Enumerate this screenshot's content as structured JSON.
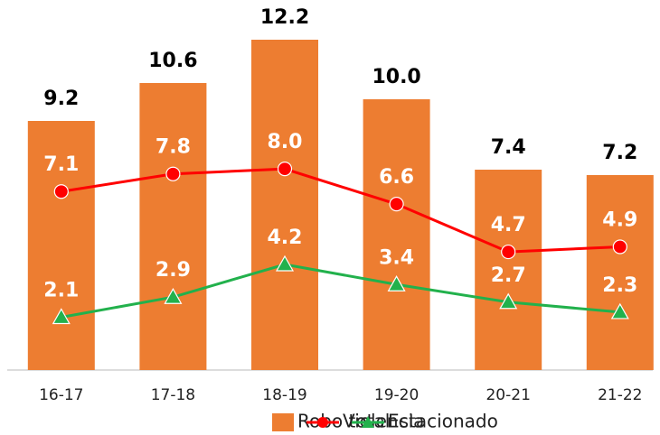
{
  "chart_data": {
    "type": "bar",
    "categories": [
      "16-17",
      "17-18",
      "18-19",
      "19-20",
      "20-21",
      "21-22"
    ],
    "ylim": [
      0,
      13
    ],
    "y2lim": [
      0,
      14
    ],
    "series": [
      {
        "name": "Robo total",
        "type": "bar",
        "color": "#ED7D31",
        "values": [
          9.2,
          10.6,
          12.2,
          10,
          7.4,
          7.2
        ],
        "value_labels": [
          "9.2",
          "10.6",
          "12.2",
          "10.0",
          "7.4",
          "7.2"
        ]
      },
      {
        "name": "Violencia",
        "type": "line",
        "axis": "y2",
        "marker": "circle",
        "color": "#FF0000",
        "values": [
          7.1,
          7.8,
          8,
          6.6,
          4.7,
          4.9
        ],
        "value_labels": [
          "7.1",
          "7.8",
          "8.0",
          "6.6",
          "4.7",
          "4.9"
        ]
      },
      {
        "name": "Estacionado",
        "type": "line",
        "axis": "y2",
        "marker": "triangle",
        "color": "#22B14C",
        "values": [
          2.1,
          2.9,
          4.2,
          3.4,
          2.7,
          2.3
        ],
        "value_labels": [
          "2.1",
          "2.9",
          "4.2",
          "3.4",
          "2.7",
          "2.3"
        ]
      }
    ],
    "legend": "bottom"
  }
}
